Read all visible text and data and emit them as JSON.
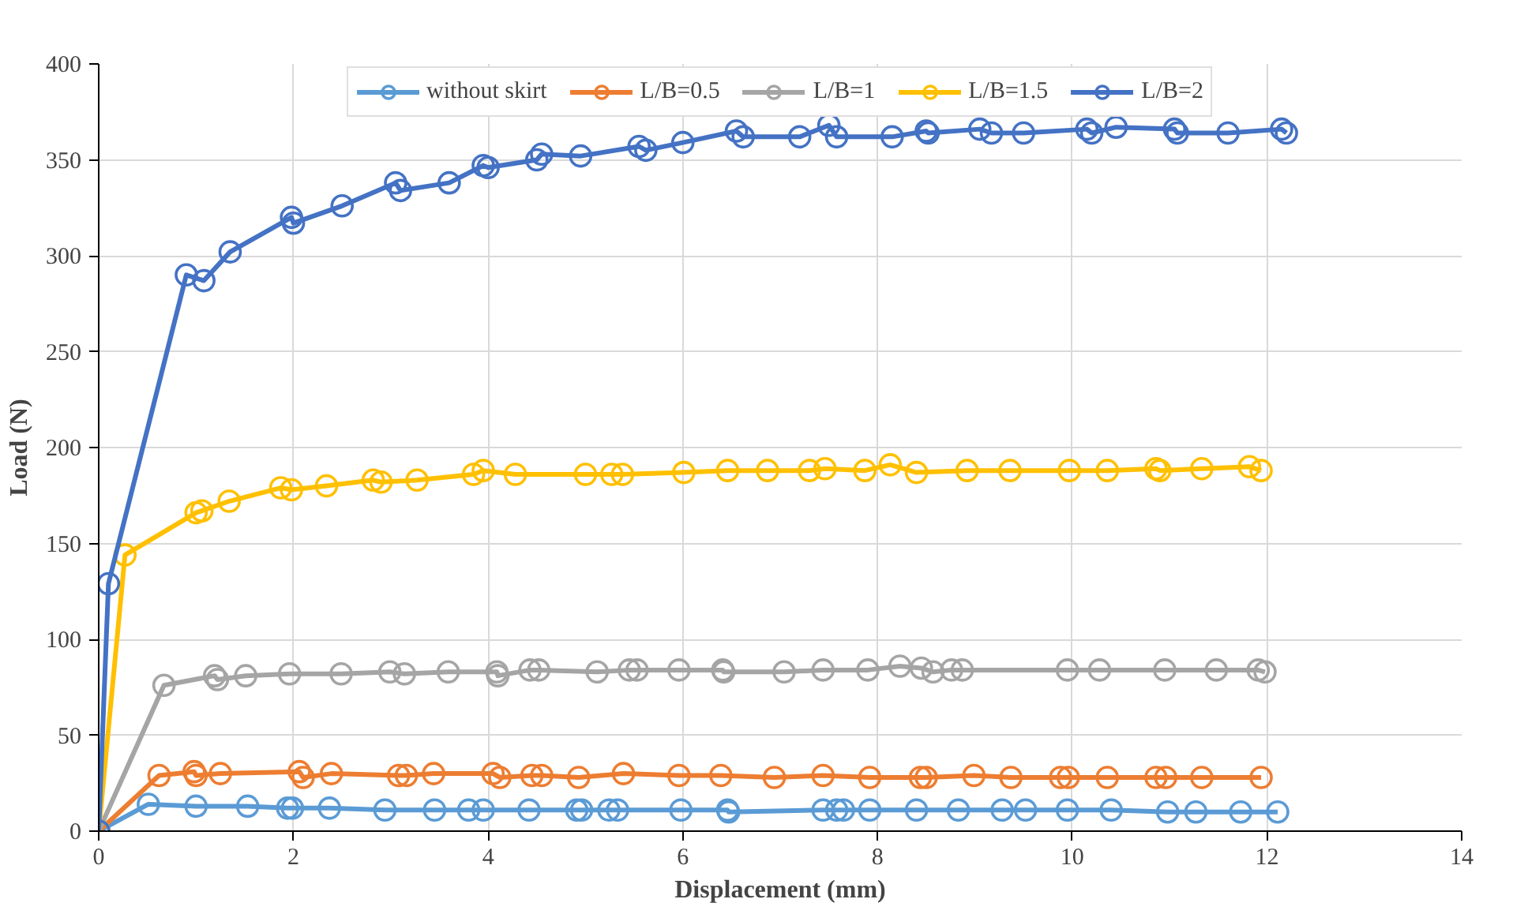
{
  "chart_data": {
    "type": "line",
    "xlabel": "Displacement (mm)",
    "ylabel": "Load (N)",
    "xlim": [
      0,
      14
    ],
    "ylim": [
      0,
      400
    ],
    "xticks": [
      0,
      2,
      4,
      6,
      8,
      10,
      12,
      14
    ],
    "yticks": [
      0,
      50,
      100,
      150,
      200,
      250,
      300,
      350,
      400
    ],
    "grid": true,
    "legend": "top",
    "marker": "circle",
    "line_style": "solid",
    "series": [
      {
        "name": "without skirt",
        "color": "#5b9bd5",
        "x": [
          0,
          0.51,
          1.0,
          1.53,
          1.94,
          1.99,
          2.37,
          2.94,
          3.45,
          3.8,
          3.95,
          4.42,
          4.91,
          4.96,
          5.24,
          5.33,
          5.98,
          6.46,
          6.47,
          7.44,
          7.58,
          7.65,
          7.92,
          8.4,
          8.83,
          9.28,
          9.52,
          9.95,
          10.4,
          10.98,
          11.27,
          11.73,
          12.11
        ],
        "values": [
          0,
          14,
          13,
          13,
          12,
          12,
          12,
          11,
          11,
          11,
          11,
          11,
          11,
          11,
          11,
          11,
          11,
          11,
          10,
          11,
          11,
          11,
          11,
          11,
          11,
          11,
          11,
          11,
          11,
          10,
          10,
          10,
          10
        ]
      },
      {
        "name": "L/B=0.5",
        "color": "#ed7d31",
        "x": [
          0,
          0.62,
          0.98,
          1.0,
          1.25,
          2.06,
          2.1,
          2.39,
          3.08,
          3.16,
          3.44,
          4.05,
          4.12,
          4.45,
          4.55,
          4.93,
          5.39,
          5.96,
          6.39,
          6.94,
          7.44,
          7.92,
          8.44,
          8.5,
          8.99,
          9.37,
          9.88,
          9.96,
          10.36,
          10.86,
          10.96,
          11.33,
          11.94
        ],
        "values": [
          0,
          29,
          31,
          29,
          30,
          31,
          28,
          30,
          29,
          29,
          30,
          30,
          28,
          29,
          29,
          28,
          30,
          29,
          29,
          28,
          29,
          28,
          28,
          28,
          29,
          28,
          28,
          28,
          28,
          28,
          28,
          28,
          28
        ]
      },
      {
        "name": "L/B=1",
        "color": "#a5a5a5",
        "x": [
          0,
          0.67,
          1.19,
          1.22,
          1.51,
          1.96,
          2.49,
          2.99,
          3.14,
          3.59,
          4.09,
          4.1,
          4.43,
          4.52,
          5.12,
          5.45,
          5.53,
          5.96,
          6.41,
          6.42,
          7.04,
          7.44,
          7.9,
          8.23,
          8.45,
          8.57,
          8.76,
          8.87,
          9.95,
          10.28,
          10.95,
          11.48,
          11.91,
          11.98
        ],
        "values": [
          0,
          76,
          81,
          79,
          81,
          82,
          82,
          83,
          82,
          83,
          83,
          81,
          84,
          84,
          83,
          84,
          84,
          84,
          84,
          83,
          83,
          84,
          84,
          86,
          85,
          83,
          84,
          84,
          84,
          84,
          84,
          84,
          84,
          83
        ]
      },
      {
        "name": "L/B=1.5",
        "color": "#ffc000",
        "x": [
          0,
          0.27,
          1.0,
          1.06,
          1.34,
          1.87,
          1.98,
          2.34,
          2.82,
          2.9,
          3.27,
          3.85,
          3.95,
          4.28,
          5.0,
          5.27,
          5.38,
          6.01,
          6.46,
          6.87,
          7.3,
          7.46,
          7.87,
          8.13,
          8.4,
          8.92,
          9.36,
          9.97,
          10.36,
          10.86,
          10.9,
          11.33,
          11.82,
          11.94
        ],
        "values": [
          0,
          144,
          166,
          167,
          172,
          179,
          178,
          180,
          183,
          182,
          183,
          186,
          188,
          186,
          186,
          186,
          186,
          187,
          188,
          188,
          188,
          189,
          188,
          191,
          187,
          188,
          188,
          188,
          188,
          189,
          188,
          189,
          190,
          188
        ]
      },
      {
        "name": "L/B=2",
        "color": "#4472c4",
        "x": [
          0,
          0.1,
          0.9,
          1.08,
          1.35,
          1.98,
          2.0,
          2.5,
          3.05,
          3.1,
          3.6,
          3.95,
          4.0,
          4.5,
          4.55,
          4.95,
          5.55,
          5.62,
          6.0,
          6.55,
          6.62,
          7.2,
          7.5,
          7.58,
          8.15,
          8.5,
          8.52,
          9.05,
          9.17,
          9.5,
          10.15,
          10.2,
          10.45,
          11.05,
          11.08,
          11.6,
          12.15,
          12.2
        ],
        "values": [
          0,
          129,
          290,
          287,
          302,
          320,
          317,
          326,
          338,
          334,
          338,
          347,
          346,
          350,
          353,
          352,
          357,
          355,
          359,
          365,
          362,
          362,
          368,
          362,
          362,
          365,
          364,
          366,
          364,
          364,
          366,
          364,
          367,
          366,
          364,
          364,
          366,
          364
        ]
      }
    ]
  }
}
